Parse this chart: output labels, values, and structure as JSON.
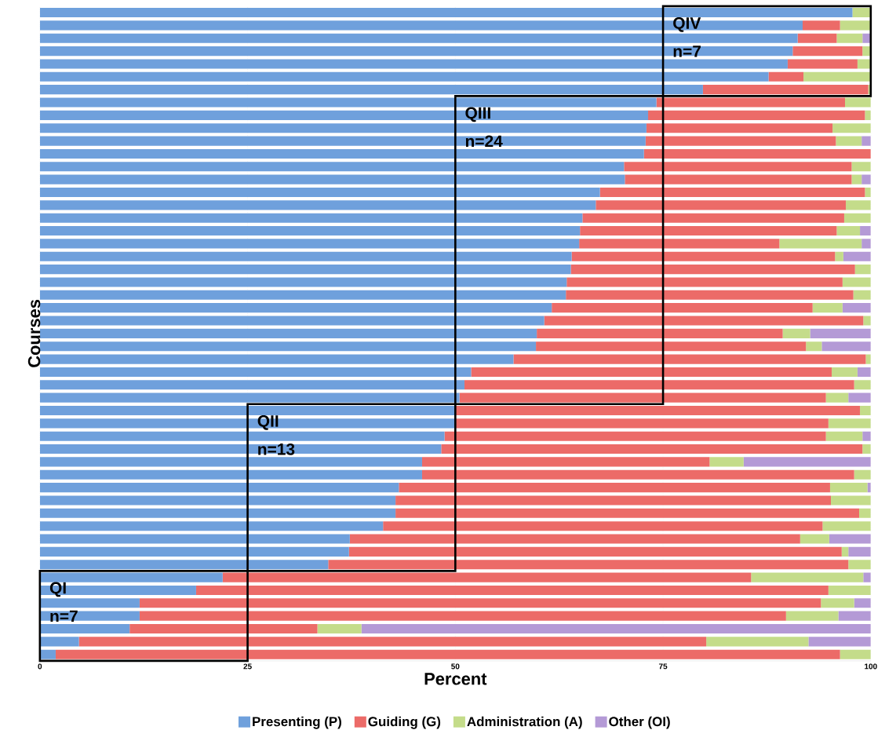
{
  "chart_data": {
    "type": "bar",
    "orientation": "horizontal",
    "stacked": true,
    "xlabel": "Percent",
    "ylabel": "Courses",
    "categories": [
      null,
      null,
      null,
      null,
      null,
      null,
      null,
      null,
      null,
      null,
      null,
      null,
      null,
      null,
      null,
      null,
      null,
      null,
      null,
      null,
      null,
      null,
      null,
      null,
      null,
      null,
      null,
      null,
      null,
      null,
      null,
      null,
      null,
      null,
      null,
      null,
      null,
      null,
      null,
      null,
      null,
      null,
      null,
      null,
      null,
      null,
      null,
      null,
      null,
      null,
      null
    ],
    "series": [
      {
        "name": "Presenting (P)",
        "color": "#6fa0dc",
        "values": [
          97.8,
          91.8,
          91.2,
          90.6,
          90.0,
          87.7,
          79.8,
          74.2,
          73.2,
          73.0,
          72.9,
          72.7,
          70.3,
          70.4,
          67.4,
          66.9,
          65.3,
          65.0,
          64.9,
          64.0,
          63.9,
          63.4,
          63.3,
          61.6,
          60.7,
          59.8,
          59.7,
          57.0,
          51.9,
          51.1,
          50.5,
          50.0,
          50.0,
          48.7,
          48.3,
          46.0,
          46.0,
          43.2,
          42.8,
          42.8,
          41.3,
          37.3,
          37.2,
          34.7,
          22.0,
          18.8,
          12.0,
          12.0,
          10.8,
          4.7,
          1.9
        ]
      },
      {
        "name": "Guiding (G)",
        "color": "#ec6b68",
        "values": [
          0,
          4.5,
          4.7,
          8.4,
          8.4,
          4.2,
          19.9,
          22.7,
          26.1,
          22.4,
          22.9,
          27.3,
          27.4,
          27.3,
          31.9,
          30.1,
          31.5,
          30.9,
          24.1,
          31.7,
          34.2,
          33.2,
          34.6,
          31.4,
          38.4,
          29.6,
          32.5,
          42.4,
          43.4,
          46.9,
          44.1,
          48.7,
          44.9,
          45.9,
          50.7,
          34.6,
          52.0,
          51.9,
          52.4,
          55.8,
          52.9,
          54.2,
          59.3,
          62.6,
          63.6,
          76.1,
          82.0,
          77.8,
          22.6,
          75.5,
          94.4
        ]
      },
      {
        "name": "Administration (A)",
        "color": "#c4dc8a",
        "values": [
          2.2,
          3.7,
          3.1,
          1.0,
          1.6,
          8.1,
          0.3,
          3.1,
          0.7,
          4.6,
          3.1,
          0,
          2.3,
          1.2,
          0.7,
          3.0,
          3.2,
          2.8,
          9.9,
          1.0,
          1.9,
          3.4,
          2.1,
          3.6,
          0.9,
          3.3,
          1.9,
          0.6,
          3.1,
          2.0,
          2.7,
          1.3,
          5.1,
          4.4,
          1.0,
          4.1,
          2.0,
          4.5,
          4.8,
          1.4,
          5.8,
          3.5,
          0.8,
          2.7,
          13.5,
          5.1,
          4.0,
          6.3,
          5.3,
          12.3,
          3.7
        ]
      },
      {
        "name": "Other (OI)",
        "color": "#b49ad6",
        "values": [
          0,
          0,
          1.0,
          0,
          0,
          0,
          0,
          0,
          0,
          0,
          1.1,
          0,
          0,
          1.1,
          0,
          0,
          0,
          1.3,
          1.1,
          3.3,
          0,
          0,
          0,
          3.4,
          0,
          7.3,
          5.9,
          0,
          1.6,
          0,
          2.7,
          0,
          0,
          1.0,
          0,
          15.3,
          0,
          0.4,
          0,
          0,
          0,
          5.0,
          2.7,
          0,
          0.9,
          0,
          2.0,
          3.9,
          61.3,
          7.5,
          0
        ]
      }
    ],
    "xlim": [
      0,
      100
    ],
    "xticks": [
      0,
      25,
      50,
      75,
      100
    ],
    "grid": "x",
    "legend": "bottom",
    "tick_labels": "x",
    "annotations": [
      "QIV",
      "n=7",
      "QIII",
      "n=24",
      "QII",
      "n=13",
      "QI",
      "n=7"
    ]
  }
}
